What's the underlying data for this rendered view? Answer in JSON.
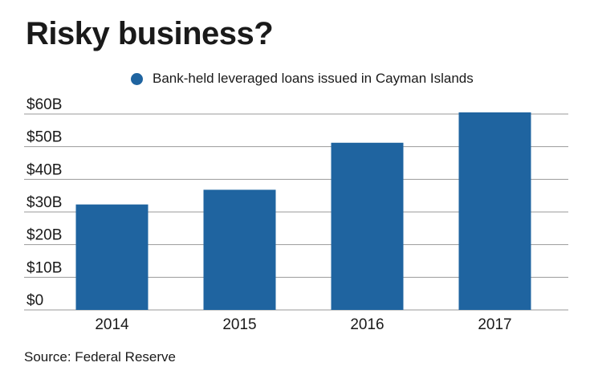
{
  "chart_data": {
    "type": "bar",
    "title": "Risky business?",
    "xlabel": "",
    "ylabel": "",
    "categories": [
      "2014",
      "2015",
      "2016",
      "2017"
    ],
    "series": [
      {
        "name": "Bank-held leveraged loans issued in Cayman Islands",
        "values": [
          32.3,
          36.8,
          51.2,
          60.5
        ]
      }
    ],
    "ylim": [
      0,
      60
    ],
    "yticks": [
      0,
      10,
      20,
      30,
      40,
      50,
      60
    ],
    "ytick_labels": [
      "$0",
      "$10B",
      "$20B",
      "$30B",
      "$40B",
      "$50B",
      "$60B"
    ],
    "grid": true,
    "legend_position": "top",
    "bar_color": "#1f64a0",
    "grid_color": "#9a9a9a"
  },
  "source": "Source: Federal Reserve"
}
